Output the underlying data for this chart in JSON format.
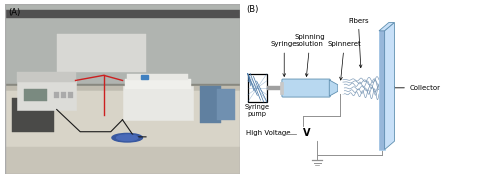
{
  "fig_width": 5.0,
  "fig_height": 1.78,
  "dpi": 100,
  "bg_color": "#ffffff",
  "label_A": "(A)",
  "label_B": "(B)",
  "photo_border_color": "#999999",
  "photo_bg_wall": "#b0b4b0",
  "photo_bg_bench": "#d8d4c8",
  "photo_bg_wall2": "#8c9090",
  "syringe_pump_label": "Syringe\npump",
  "syringe_label": "Syringe",
  "spinning_sol_label": "Spinning\nsolution",
  "spinneret_label": "Spinneret",
  "fibers_label": "Fibers",
  "collector_label": "Collector",
  "high_voltage_label": "High Voltage",
  "voltage_box_label": "V",
  "collector_color_front": "#b8d8f0",
  "collector_color_side": "#c8e0f8",
  "syringe_body_color": "#b8d8f0",
  "wire_color": "#909090",
  "text_fontsize": 5.5,
  "small_fontsize": 5.0,
  "panel_b_xlim": [
    0,
    10
  ],
  "panel_b_ylim": [
    0,
    7.5
  ]
}
